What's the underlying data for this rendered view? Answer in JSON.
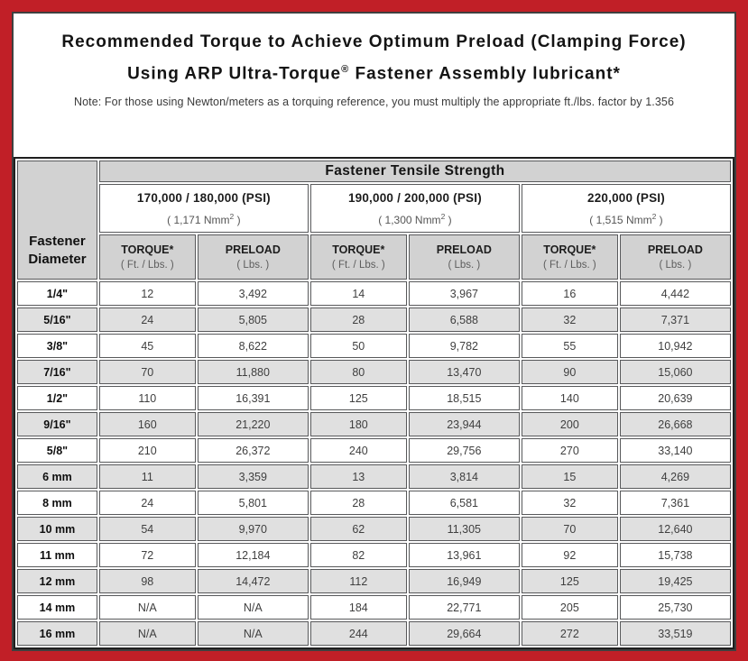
{
  "colors": {
    "frame_red": "#C11F27",
    "panel_border": "#3f3f3f",
    "header_gray": "#D2D2D2",
    "stripe_gray": "#E0E0E0"
  },
  "title": {
    "line1": "Recommended Torque to Achieve Optimum Preload (Clamping Force)",
    "line2_prefix": "Using ARP Ultra-Torque",
    "line2_sup": "®",
    "line2_suffix": " Fastener Assembly lubricant*"
  },
  "note": "Note: For those using Newton/meters as a torquing reference, you must multiply the appropriate ft./lbs. factor by 1.356",
  "table": {
    "corner": {
      "line1": "Fastener",
      "line2": "Diameter"
    },
    "tensile_header": "Fastener Tensile Strength",
    "groups": [
      {
        "psi": "170,000 / 180,000 (PSI)",
        "nmm_open": "( 1,171 Nmm",
        "nmm_sup": "2",
        "nmm_close": " )"
      },
      {
        "psi": "190,000 / 200,000 (PSI)",
        "nmm_open": "( 1,300 Nmm",
        "nmm_sup": "2",
        "nmm_close": " )"
      },
      {
        "psi": "220,000 (PSI)",
        "nmm_open": "( 1,515 Nmm",
        "nmm_sup": "2",
        "nmm_close": " )"
      }
    ],
    "col_headers": {
      "torque_label": "TORQUE*",
      "torque_sub": "( Ft. / Lbs. )",
      "preload_label": "PRELOAD",
      "preload_sub": "( Lbs. )"
    },
    "rows": [
      {
        "label": "1/4\"",
        "values": [
          "12",
          "3,492",
          "14",
          "3,967",
          "16",
          "4,442"
        ]
      },
      {
        "label": "5/16\"",
        "values": [
          "24",
          "5,805",
          "28",
          "6,588",
          "32",
          "7,371"
        ]
      },
      {
        "label": "3/8\"",
        "values": [
          "45",
          "8,622",
          "50",
          "9,782",
          "55",
          "10,942"
        ]
      },
      {
        "label": "7/16\"",
        "values": [
          "70",
          "11,880",
          "80",
          "13,470",
          "90",
          "15,060"
        ]
      },
      {
        "label": "1/2\"",
        "values": [
          "110",
          "16,391",
          "125",
          "18,515",
          "140",
          "20,639"
        ]
      },
      {
        "label": "9/16\"",
        "values": [
          "160",
          "21,220",
          "180",
          "23,944",
          "200",
          "26,668"
        ]
      },
      {
        "label": "5/8\"",
        "values": [
          "210",
          "26,372",
          "240",
          "29,756",
          "270",
          "33,140"
        ]
      },
      {
        "label": "6 mm",
        "values": [
          "11",
          "3,359",
          "13",
          "3,814",
          "15",
          "4,269"
        ]
      },
      {
        "label": "8 mm",
        "values": [
          "24",
          "5,801",
          "28",
          "6,581",
          "32",
          "7,361"
        ]
      },
      {
        "label": "10 mm",
        "values": [
          "54",
          "9,970",
          "62",
          "11,305",
          "70",
          "12,640"
        ]
      },
      {
        "label": "11 mm",
        "values": [
          "72",
          "12,184",
          "82",
          "13,961",
          "92",
          "15,738"
        ]
      },
      {
        "label": "12 mm",
        "values": [
          "98",
          "14,472",
          "112",
          "16,949",
          "125",
          "19,425"
        ]
      },
      {
        "label": "14 mm",
        "values": [
          "N/A",
          "N/A",
          "184",
          "22,771",
          "205",
          "25,730"
        ]
      },
      {
        "label": "16 mm",
        "values": [
          "N/A",
          "N/A",
          "244",
          "29,664",
          "272",
          "33,519"
        ]
      }
    ]
  }
}
